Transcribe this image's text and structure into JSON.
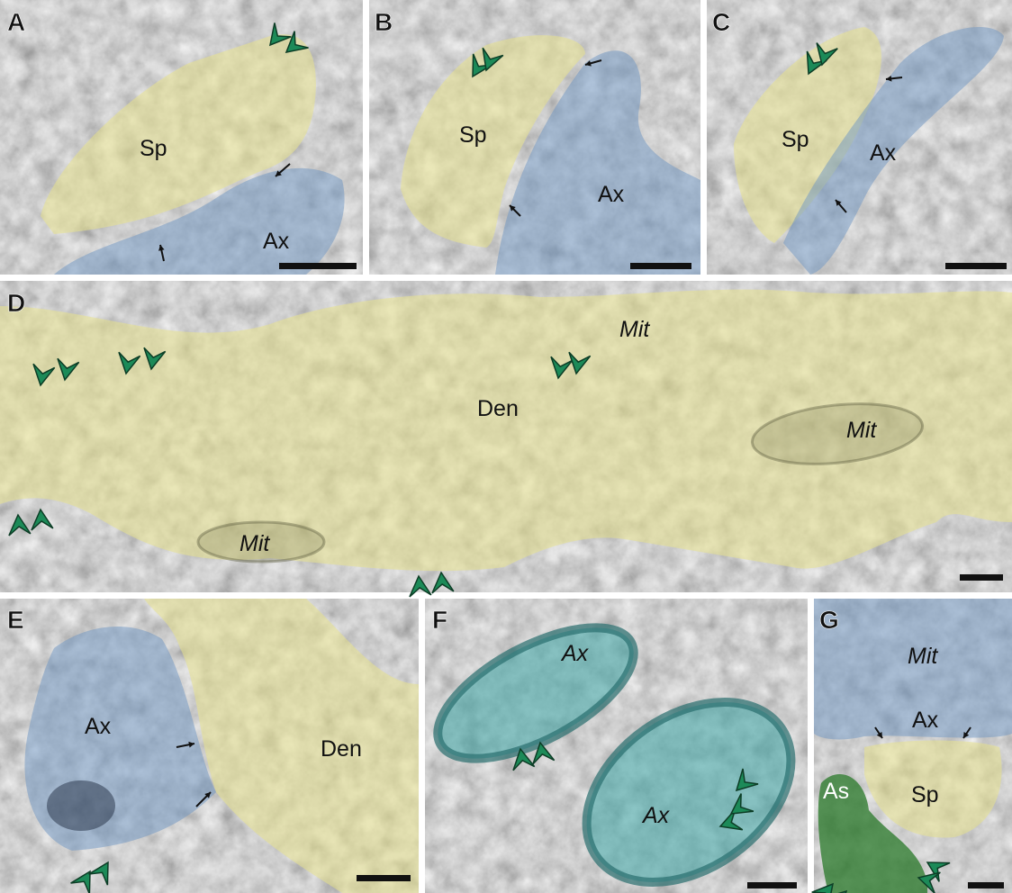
{
  "panels": [
    {
      "letter": "A",
      "labels": [
        "Sp",
        "Ax"
      ]
    },
    {
      "letter": "B",
      "labels": [
        "Sp",
        "Ax"
      ]
    },
    {
      "letter": "C",
      "labels": [
        "Sp",
        "Ax"
      ]
    },
    {
      "letter": "D",
      "labels": [
        "Mit",
        "Mit",
        "Den",
        "Mit"
      ]
    },
    {
      "letter": "E",
      "labels": [
        "Ax",
        "Den"
      ]
    },
    {
      "letter": "F",
      "labels": [
        "Ax",
        "Ax"
      ]
    },
    {
      "letter": "G",
      "labels": [
        "Mit",
        "Ax",
        "Sp",
        "As"
      ]
    }
  ]
}
